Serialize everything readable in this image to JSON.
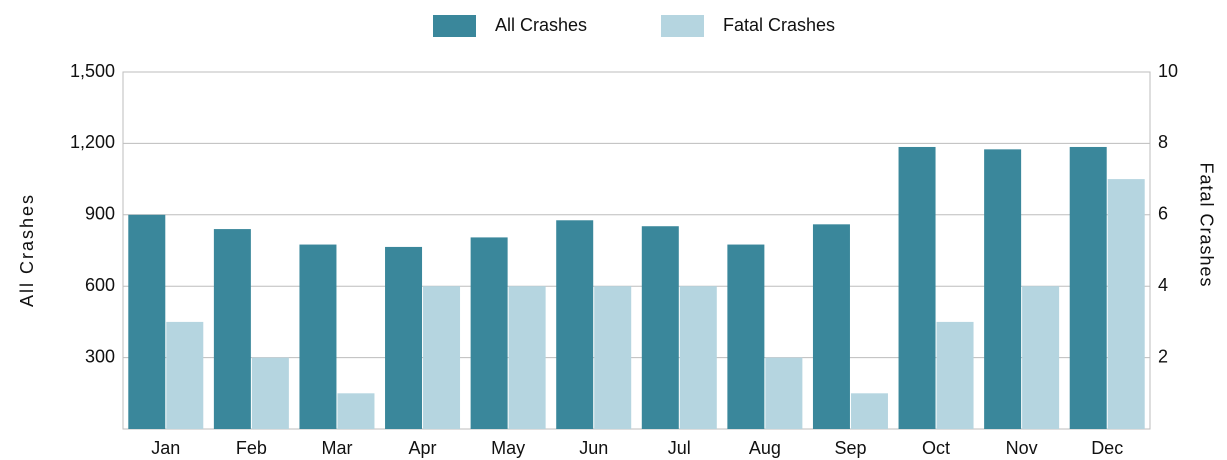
{
  "chart_data": {
    "type": "bar",
    "categories": [
      "Jan",
      "Feb",
      "Mar",
      "Apr",
      "May",
      "Jun",
      "Jul",
      "Aug",
      "Sep",
      "Oct",
      "Nov",
      "Dec"
    ],
    "series": [
      {
        "name": "All Crashes",
        "color": "#3a879b",
        "values": [
          900,
          840,
          775,
          765,
          805,
          877,
          852,
          775,
          860,
          1185,
          1175,
          1185
        ]
      },
      {
        "name": "Fatal Crashes",
        "color": "#b5d5e0",
        "axis": "y2",
        "values": [
          3,
          2,
          1,
          4,
          4,
          4,
          4,
          2,
          1,
          3,
          4,
          7
        ]
      }
    ],
    "y_label": "All Crashes",
    "y2_label": "Fatal Crashes",
    "ylim": [
      0,
      1500
    ],
    "yticks": [
      300,
      600,
      900,
      {
        "value": 1200,
        "label": "1,200"
      },
      {
        "value": 1500,
        "label": "1,500"
      }
    ],
    "y2lim": [
      0,
      10
    ],
    "y2ticks": [
      2,
      4,
      6,
      8,
      10
    ],
    "grid": true,
    "legend": "top"
  }
}
